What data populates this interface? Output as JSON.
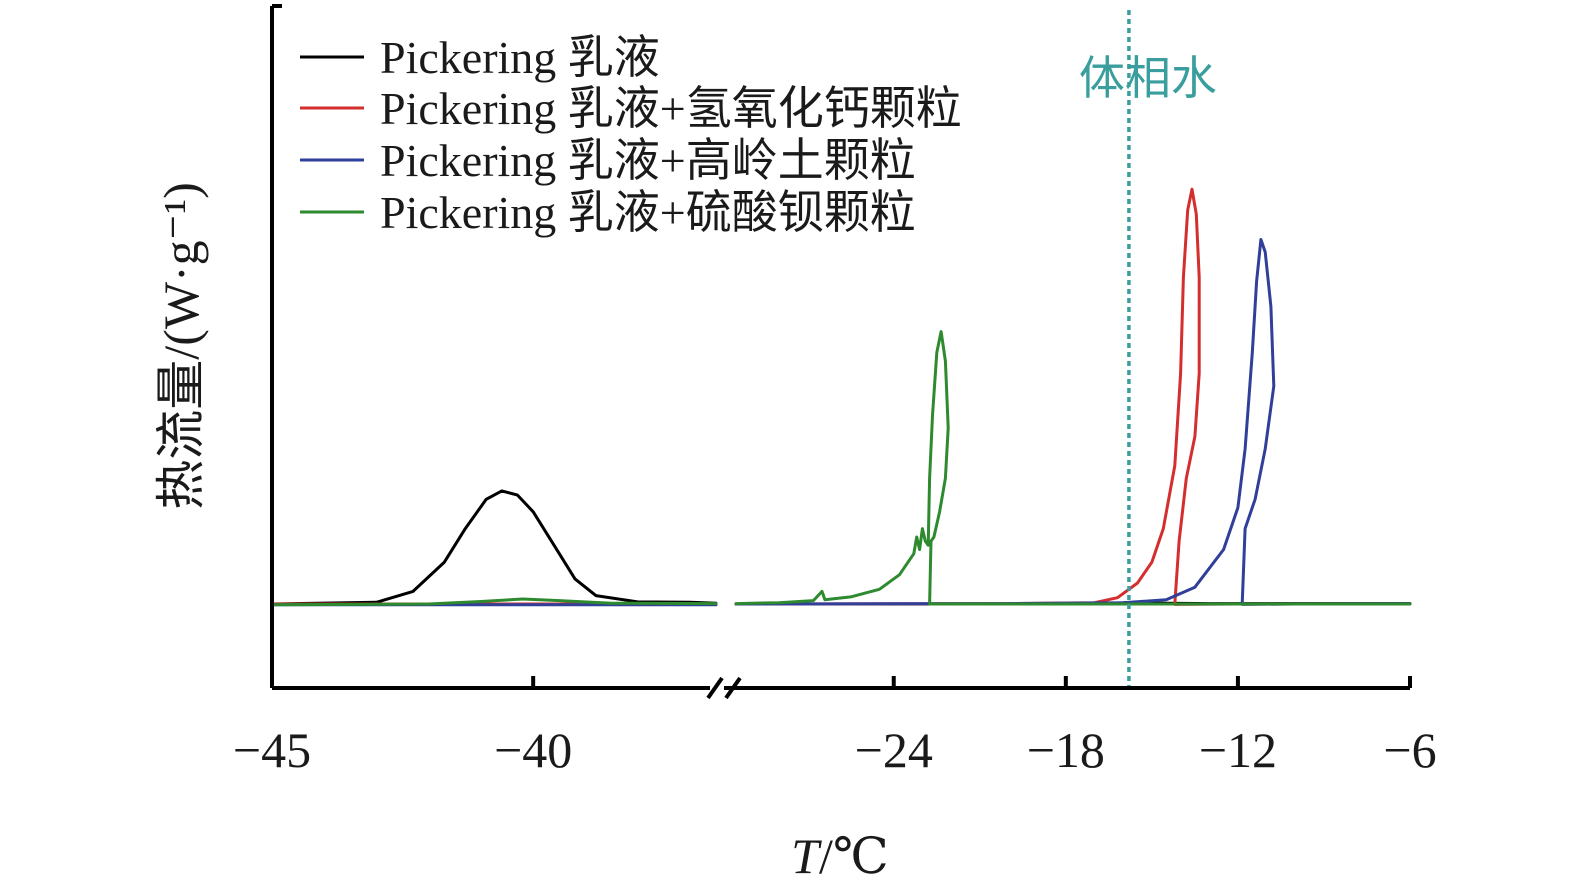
{
  "chart_data": {
    "type": "line",
    "xlabel": "T/℃",
    "xlabel_italic": "T",
    "xlabel_unit": "/℃",
    "ylabel": "热流量/(W·g⁻¹)",
    "x_ticks": [
      -45,
      -40,
      -24,
      -18,
      -12,
      -6
    ],
    "x_tick_labels": [
      "−45",
      "−40",
      "−24",
      "−18",
      "−12",
      "−6"
    ],
    "x_axis_break": [
      -36.5,
      -29.5
    ],
    "xlim_segments": [
      [
        -45,
        -36.5
      ],
      [
        -29.5,
        -6
      ]
    ],
    "y_ticks_shown": false,
    "ylim": [
      -0.22,
      1.05
    ],
    "legend_placement": "top-left",
    "annotation": {
      "text": "体相水",
      "x": -15.8,
      "color": "#3a9e9e",
      "style": "dotted vertical line"
    },
    "series": [
      {
        "name": "Pickering 乳液",
        "color": "#000000",
        "points": [
          [
            -45,
            0
          ],
          [
            -43,
            0.004
          ],
          [
            -42.3,
            0.03
          ],
          [
            -41.7,
            0.1
          ],
          [
            -41.3,
            0.18
          ],
          [
            -40.9,
            0.25
          ],
          [
            -40.6,
            0.27
          ],
          [
            -40.3,
            0.26
          ],
          [
            -40,
            0.22
          ],
          [
            -39.6,
            0.14
          ],
          [
            -39.2,
            0.06
          ],
          [
            -38.8,
            0.02
          ],
          [
            -38,
            0.005
          ],
          [
            -37,
            0.004
          ],
          [
            -36.5,
            0.002
          ],
          [
            -29.5,
            0.0
          ],
          [
            -24,
            0.0
          ],
          [
            -18,
            0.0
          ],
          [
            -15.8,
            0.003
          ],
          [
            -14.5,
            0.002
          ],
          [
            -13,
            0.001
          ],
          [
            -6,
            0.001
          ]
        ]
      },
      {
        "name": "Pickering 乳液+氢氧化钙颗粒",
        "color": "#d42e2e",
        "points": [
          [
            -45,
            0
          ],
          [
            -36.5,
            0
          ],
          [
            -29.5,
            0
          ],
          [
            -20,
            0.001
          ],
          [
            -17,
            0.003
          ],
          [
            -16.2,
            0.015
          ],
          [
            -15.5,
            0.05
          ],
          [
            -15,
            0.1
          ],
          [
            -14.6,
            0.18
          ],
          [
            -14.2,
            0.33
          ],
          [
            -14.0,
            0.55
          ],
          [
            -13.9,
            0.78
          ],
          [
            -13.75,
            0.94
          ],
          [
            -13.6,
            0.99
          ],
          [
            -13.45,
            0.93
          ],
          [
            -13.35,
            0.78
          ],
          [
            -13.35,
            0.55
          ],
          [
            -13.5,
            0.4
          ],
          [
            -13.8,
            0.3
          ],
          [
            -14.05,
            0.15
          ],
          [
            -14.2,
            0.0
          ],
          [
            -14.2,
            -0.001
          ],
          [
            -12,
            0
          ],
          [
            -6,
            0
          ]
        ]
      },
      {
        "name": "Pickering 乳液+高岭土颗粒",
        "color": "#2f3f9a",
        "points": [
          [
            -45,
            -0.002
          ],
          [
            -36.5,
            -0.002
          ],
          [
            -29.5,
            0
          ],
          [
            -20,
            0.001
          ],
          [
            -16,
            0.003
          ],
          [
            -14.5,
            0.01
          ],
          [
            -13.5,
            0.04
          ],
          [
            -12.5,
            0.13
          ],
          [
            -12.0,
            0.23
          ],
          [
            -11.75,
            0.37
          ],
          [
            -11.5,
            0.6
          ],
          [
            -11.35,
            0.77
          ],
          [
            -11.2,
            0.87
          ],
          [
            -11.05,
            0.84
          ],
          [
            -10.85,
            0.71
          ],
          [
            -10.75,
            0.52
          ],
          [
            -11.05,
            0.37
          ],
          [
            -11.4,
            0.25
          ],
          [
            -11.75,
            0.18
          ],
          [
            -11.85,
            0.0
          ],
          [
            -11.85,
            -0.001
          ],
          [
            -10,
            0
          ],
          [
            -6,
            0.001
          ]
        ]
      },
      {
        "name": "Pickering 乳液+硫酸钡颗粒",
        "color": "#2e8a2e",
        "points": [
          [
            -45,
            -0.002
          ],
          [
            -42,
            0.0
          ],
          [
            -41,
            0.006
          ],
          [
            -40.2,
            0.012
          ],
          [
            -39.5,
            0.008
          ],
          [
            -38.5,
            0.002
          ],
          [
            -36.5,
            0.001
          ],
          [
            -29.5,
            0.001
          ],
          [
            -28,
            0.003
          ],
          [
            -26.8,
            0.008
          ],
          [
            -26.5,
            0.03
          ],
          [
            -26.4,
            0.01
          ],
          [
            -25.5,
            0.017
          ],
          [
            -24.5,
            0.035
          ],
          [
            -23.8,
            0.07
          ],
          [
            -23.3,
            0.12
          ],
          [
            -23.2,
            0.16
          ],
          [
            -23.1,
            0.13
          ],
          [
            -23.0,
            0.18
          ],
          [
            -22.9,
            0.15
          ],
          [
            -22.8,
            0.14
          ],
          [
            -22.75,
            0.3
          ],
          [
            -22.65,
            0.45
          ],
          [
            -22.5,
            0.6
          ],
          [
            -22.35,
            0.65
          ],
          [
            -22.2,
            0.58
          ],
          [
            -22.1,
            0.42
          ],
          [
            -22.2,
            0.3
          ],
          [
            -22.4,
            0.22
          ],
          [
            -22.6,
            0.16
          ],
          [
            -22.7,
            0.15
          ],
          [
            -22.75,
            0.0
          ],
          [
            -22,
            0
          ],
          [
            -6,
            0
          ]
        ]
      }
    ]
  }
}
